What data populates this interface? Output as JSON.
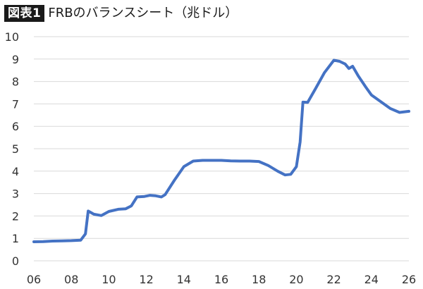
{
  "header": {
    "badge": "図表1",
    "title": "FRBのバランスシート（兆ドル）"
  },
  "chart_data": {
    "type": "line",
    "title": "FRBのバランスシート（兆ドル）",
    "xlabel": "",
    "ylabel": "",
    "xlim": [
      2006,
      2026
    ],
    "ylim": [
      0,
      10
    ],
    "grid": true,
    "legend": "none",
    "x_ticks": [
      {
        "value": 2006,
        "label": "06"
      },
      {
        "value": 2008,
        "label": "08"
      },
      {
        "value": 2010,
        "label": "10"
      },
      {
        "value": 2012,
        "label": "12"
      },
      {
        "value": 2014,
        "label": "14"
      },
      {
        "value": 2016,
        "label": "16"
      },
      {
        "value": 2018,
        "label": "18"
      },
      {
        "value": 2020,
        "label": "20"
      },
      {
        "value": 2022,
        "label": "22"
      },
      {
        "value": 2024,
        "label": "24"
      },
      {
        "value": 2026,
        "label": "26"
      }
    ],
    "y_ticks": [
      {
        "value": 0,
        "label": "0"
      },
      {
        "value": 1,
        "label": "1"
      },
      {
        "value": 2,
        "label": "2"
      },
      {
        "value": 3,
        "label": "3"
      },
      {
        "value": 4,
        "label": "4"
      },
      {
        "value": 5,
        "label": "5"
      },
      {
        "value": 6,
        "label": "6"
      },
      {
        "value": 7,
        "label": "7"
      },
      {
        "value": 8,
        "label": "8"
      },
      {
        "value": 9,
        "label": "9"
      },
      {
        "value": 10,
        "label": "10"
      }
    ],
    "line_color": "#4472C4",
    "series": [
      {
        "x": [
          2006.0,
          2006.5,
          2007.0,
          2007.5,
          2008.0,
          2008.5,
          2008.75,
          2008.9,
          2009.2,
          2009.6,
          2010.0,
          2010.5,
          2010.9,
          2011.2,
          2011.5,
          2011.9,
          2012.2,
          2012.5,
          2012.8,
          2013.0,
          2013.5,
          2014.0,
          2014.5,
          2015.0,
          2015.5,
          2016.0,
          2016.5,
          2017.0,
          2017.5,
          2018.0,
          2018.5,
          2019.0,
          2019.4,
          2019.7,
          2020.0,
          2020.2,
          2020.35,
          2020.6,
          2021.0,
          2021.5,
          2022.0,
          2022.3,
          2022.6,
          2022.8,
          2023.0,
          2023.3,
          2023.7,
          2024.0,
          2024.5,
          2025.0,
          2025.5,
          2026.0
        ],
        "y": [
          0.85,
          0.86,
          0.88,
          0.89,
          0.9,
          0.92,
          1.2,
          2.22,
          2.08,
          2.02,
          2.2,
          2.3,
          2.32,
          2.45,
          2.85,
          2.87,
          2.92,
          2.9,
          2.85,
          2.95,
          3.6,
          4.2,
          4.45,
          4.48,
          4.48,
          4.48,
          4.46,
          4.45,
          4.45,
          4.43,
          4.25,
          4.0,
          3.83,
          3.86,
          4.2,
          5.3,
          7.08,
          7.07,
          7.65,
          8.4,
          8.95,
          8.9,
          8.78,
          8.58,
          8.68,
          8.25,
          7.75,
          7.4,
          7.1,
          6.8,
          6.62,
          6.67
        ]
      }
    ]
  }
}
